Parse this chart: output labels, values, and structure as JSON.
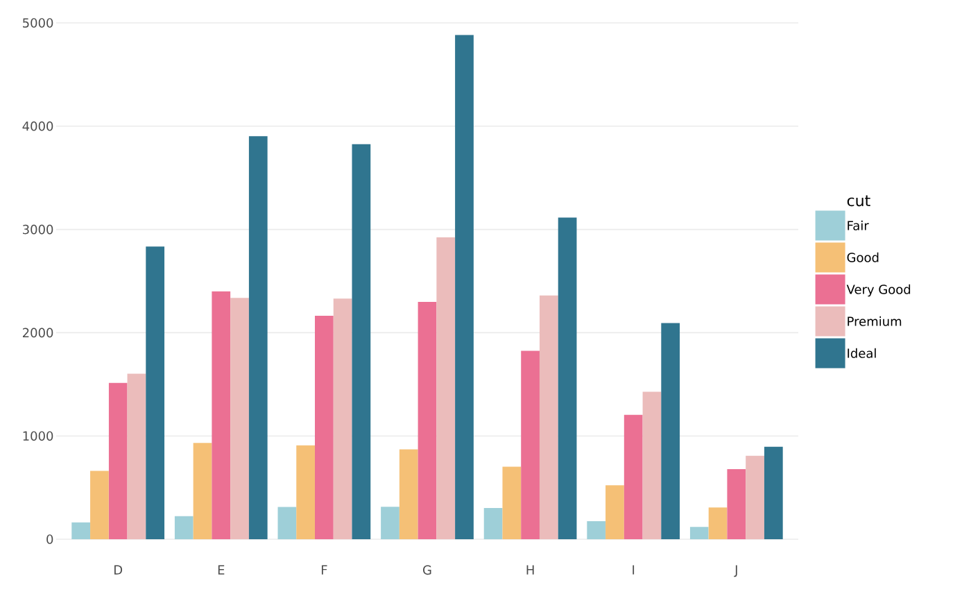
{
  "chart_data": {
    "type": "bar",
    "legend_title": "cut",
    "categories": [
      "D",
      "E",
      "F",
      "G",
      "H",
      "I",
      "J"
    ],
    "series": [
      {
        "name": "Fair",
        "color": "#9ecfd8",
        "values": [
          163,
          224,
          312,
          314,
          303,
          175,
          119
        ]
      },
      {
        "name": "Good",
        "color": "#f5c076",
        "values": [
          662,
          933,
          909,
          871,
          702,
          522,
          307
        ]
      },
      {
        "name": "Very Good",
        "color": "#eb7093",
        "values": [
          1513,
          2400,
          2164,
          2299,
          1824,
          1204,
          678
        ]
      },
      {
        "name": "Premium",
        "color": "#ebbcbb",
        "values": [
          1603,
          2337,
          2331,
          2924,
          2360,
          1428,
          808
        ]
      },
      {
        "name": "Ideal",
        "color": "#30758f",
        "values": [
          2834,
          3903,
          3826,
          4884,
          3115,
          2093,
          896
        ]
      }
    ],
    "ylim": [
      0,
      5000
    ],
    "yticks": [
      0,
      1000,
      2000,
      3000,
      4000,
      5000
    ],
    "grid": "y",
    "legend": "right"
  }
}
